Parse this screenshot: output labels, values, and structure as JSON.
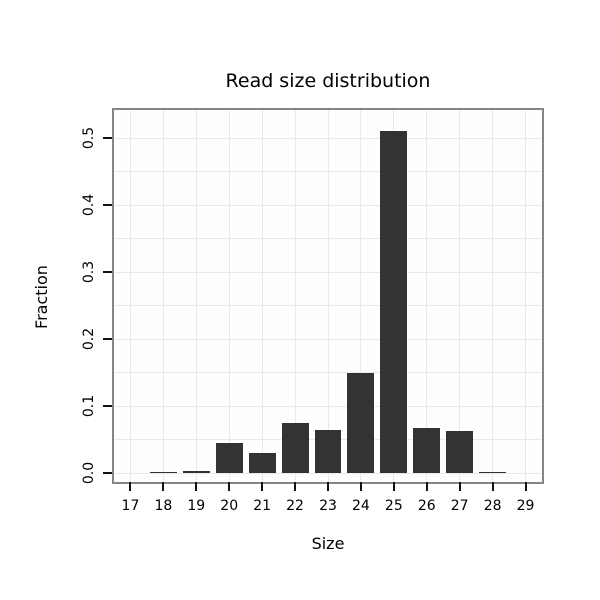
{
  "chart_data": {
    "type": "bar",
    "title": "Read size distribution",
    "xlabel": "Size",
    "ylabel": "Fraction",
    "categories": [
      "17",
      "18",
      "19",
      "20",
      "21",
      "22",
      "23",
      "24",
      "25",
      "26",
      "27",
      "28",
      "29"
    ],
    "values": [
      0,
      0.002,
      0.003,
      0.045,
      0.03,
      0.075,
      0.065,
      0.15,
      0.51,
      0.068,
      0.063,
      0.002,
      0
    ],
    "ylim": [
      -0.013,
      0.542
    ],
    "yticks": [
      0.0,
      0.1,
      0.2,
      0.3,
      0.4,
      0.5
    ],
    "ytick_labels": [
      "0.0",
      "0.1",
      "0.2",
      "0.3",
      "0.4",
      "0.5"
    ],
    "ygrid": [
      0.0,
      0.05,
      0.1,
      0.15,
      0.2,
      0.25,
      0.3,
      0.35,
      0.4,
      0.45,
      0.5
    ],
    "grid": true,
    "legend": "none",
    "colors": {
      "bar": "#333333",
      "panel_border": "#858585",
      "grid": "#e9e9e9",
      "tick": "#111111",
      "background": "#ffffff"
    }
  }
}
